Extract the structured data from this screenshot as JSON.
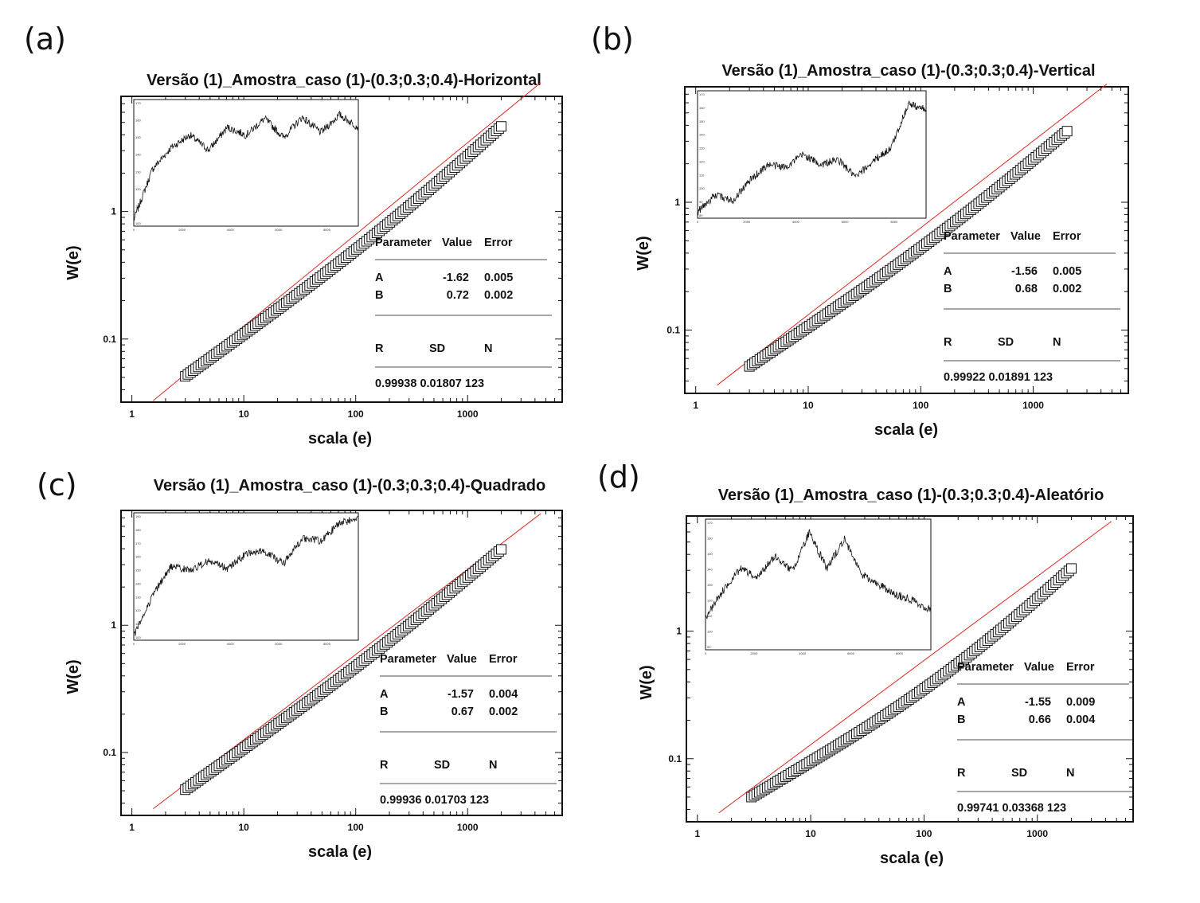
{
  "chart_data": [
    {
      "letter": "(a)",
      "type": "scatter",
      "title": "Versão (1)_Amostra_caso (1)-(0.3;0.3;0.4)-Horizontal",
      "xlabel": "scala (e)",
      "ylabel": "W(e)",
      "xscale": "log",
      "yscale": "log",
      "xlim": [
        0.8,
        7000
      ],
      "ylim": [
        0.032,
        8
      ],
      "xticks": [
        "1",
        "10",
        "100",
        "1000"
      ],
      "yticks": [
        "0.1",
        "1"
      ],
      "fit": {
        "A": -1.62,
        "B": 0.72,
        "color": "#e0261f"
      },
      "points": {
        "x_range": [
          3,
          2000
        ],
        "n_shown": 123,
        "y_start": 0.051,
        "y_end": 4.65,
        "bend": -0.05
      },
      "stats": {
        "header": [
          "Parameter",
          "Value",
          "Error"
        ],
        "rows": [
          [
            "A",
            "-1.62",
            "0.005"
          ],
          [
            "B",
            "0.72",
            "0.002"
          ]
        ],
        "footer_header": [
          "R",
          "SD",
          "N"
        ],
        "footer_values": "0.99938 0.01807 123"
      },
      "inset": {
        "type": "line",
        "xticks": [
          "0",
          "2000",
          "4000",
          "6000",
          "8000"
        ],
        "yticks": [
          "100",
          "110",
          "120",
          "130",
          "140",
          "150",
          "160",
          "170"
        ]
      }
    },
    {
      "letter": "(b)",
      "type": "scatter",
      "title": "Versão (1)_Amostra_caso (1)-(0.3;0.3;0.4)-Vertical",
      "xlabel": "scala (e)",
      "ylabel": "W(e)",
      "xscale": "log",
      "yscale": "log",
      "xlim": [
        0.8,
        7000
      ],
      "ylim": [
        0.032,
        8
      ],
      "xticks": [
        "1",
        "10",
        "100",
        "1000"
      ],
      "yticks": [
        "0.1",
        "1"
      ],
      "fit": {
        "A": -1.56,
        "B": 0.68,
        "color": "#e0261f"
      },
      "points": {
        "x_range": [
          3,
          2000
        ],
        "n_shown": 123,
        "y_start": 0.052,
        "y_end": 3.6,
        "bend": -0.05
      },
      "stats": {
        "header": [
          "Parameter",
          "Value",
          "Error"
        ],
        "rows": [
          [
            "A",
            "-1.56",
            "0.005"
          ],
          [
            "B",
            "0.68",
            "0.002"
          ]
        ],
        "footer_header": [
          "R",
          "SD",
          "N"
        ],
        "footer_values": "0.99922 0.01891 123"
      },
      "inset": {
        "type": "line",
        "xticks": [
          "0",
          "2000",
          "4000",
          "6000",
          "8000"
        ],
        "yticks": [
          "80",
          "90",
          "100",
          "110",
          "120",
          "130",
          "140",
          "150",
          "160",
          "170"
        ]
      }
    },
    {
      "letter": "(c)",
      "type": "scatter",
      "title": "Versão (1)_Amostra_caso (1)-(0.3;0.3;0.4)-Quadrado",
      "xlabel": "scala (e)",
      "ylabel": "W(e)",
      "xscale": "log",
      "yscale": "log",
      "xlim": [
        0.8,
        7000
      ],
      "ylim": [
        0.032,
        8
      ],
      "xticks": [
        "1",
        "10",
        "100",
        "1000"
      ],
      "yticks": [
        "0.1",
        "1"
      ],
      "fit": {
        "A": -1.57,
        "B": 0.67,
        "color": "#e0261f"
      },
      "points": {
        "x_range": [
          3,
          2000
        ],
        "n_shown": 123,
        "y_start": 0.051,
        "y_end": 3.95,
        "bend": -0.04
      },
      "stats": {
        "header": [
          "Parameter",
          "Value",
          "Error"
        ],
        "rows": [
          [
            "A",
            "-1.57",
            "0.004"
          ],
          [
            "B",
            "0.67",
            "0.002"
          ]
        ],
        "footer_header": [
          "R",
          "SD",
          "N"
        ],
        "footer_values": "0.99936 0.01703 123"
      },
      "inset": {
        "type": "line",
        "xticks": [
          "0",
          "2000",
          "4000",
          "6000",
          "8000"
        ],
        "yticks": [
          "100",
          "110",
          "120",
          "130",
          "140",
          "150",
          "160",
          "170",
          "180",
          "190"
        ]
      }
    },
    {
      "letter": "(d)",
      "type": "scatter",
      "title": "Versão (1)_Amostra_caso (1)-(0.3;0.3;0.4)-Aleatório",
      "xlabel": "scala (e)",
      "ylabel": "W(e)",
      "xscale": "log",
      "yscale": "log",
      "xlim": [
        0.8,
        7000
      ],
      "ylim": [
        0.032,
        8
      ],
      "xticks": [
        "1",
        "10",
        "100",
        "1000"
      ],
      "yticks": [
        "0.1",
        "1"
      ],
      "fit": {
        "A": -1.55,
        "B": 0.66,
        "color": "#e0261f"
      },
      "points": {
        "x_range": [
          3,
          2000
        ],
        "n_shown": 123,
        "y_start": 0.05,
        "y_end": 3.1,
        "bend": -0.09
      },
      "stats": {
        "header": [
          "Parameter",
          "Value",
          "Error"
        ],
        "rows": [
          [
            "A",
            "-1.55",
            "0.009"
          ],
          [
            "B",
            "0.66",
            "0.004"
          ]
        ],
        "footer_header": [
          "R",
          "SD",
          "N"
        ],
        "footer_values": "0.99741 0.03368 123"
      },
      "inset": {
        "type": "line",
        "xticks": [
          "0",
          "2000",
          "4000",
          "6000",
          "8000"
        ],
        "yticks": [
          "90",
          "100",
          "110",
          "120",
          "130",
          "140",
          "150",
          "160",
          "170"
        ]
      }
    }
  ]
}
